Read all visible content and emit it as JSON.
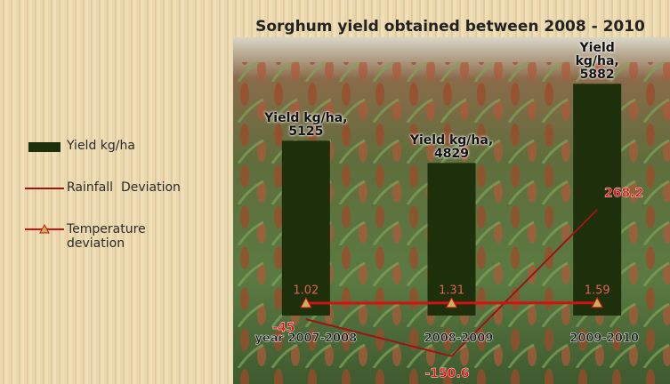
{
  "chart_data": {
    "type": "bar",
    "title": "Sorghum yield obtained between 2008 - 2010",
    "categories": [
      "year 2007-2008",
      "2008-2009",
      "2009-2010"
    ],
    "series": [
      {
        "name": "Yield kg/ha",
        "type": "bar",
        "color": "#1d2f0b",
        "values": [
          5125,
          4829,
          5882
        ],
        "value_labels": [
          "Yield kg/ha,\n5125",
          "Yield kg/ha,\n4829",
          "Yield kg/ha,\n5882"
        ]
      },
      {
        "name": "Rainfall  Deviation",
        "type": "line",
        "axis": "y2",
        "color": "#9a1616",
        "values": [
          -45,
          -150.6,
          268.2
        ]
      },
      {
        "name": "Temperature\ndeviation",
        "type": "line",
        "axis": "y2",
        "color": "#d01212",
        "marker": "triangle",
        "marker_color": "#c9b25a",
        "values": [
          1.02,
          1.31,
          1.59
        ]
      }
    ],
    "ylim": [
      2800,
      6500
    ],
    "y2lim": [
      -230,
      760
    ]
  }
}
